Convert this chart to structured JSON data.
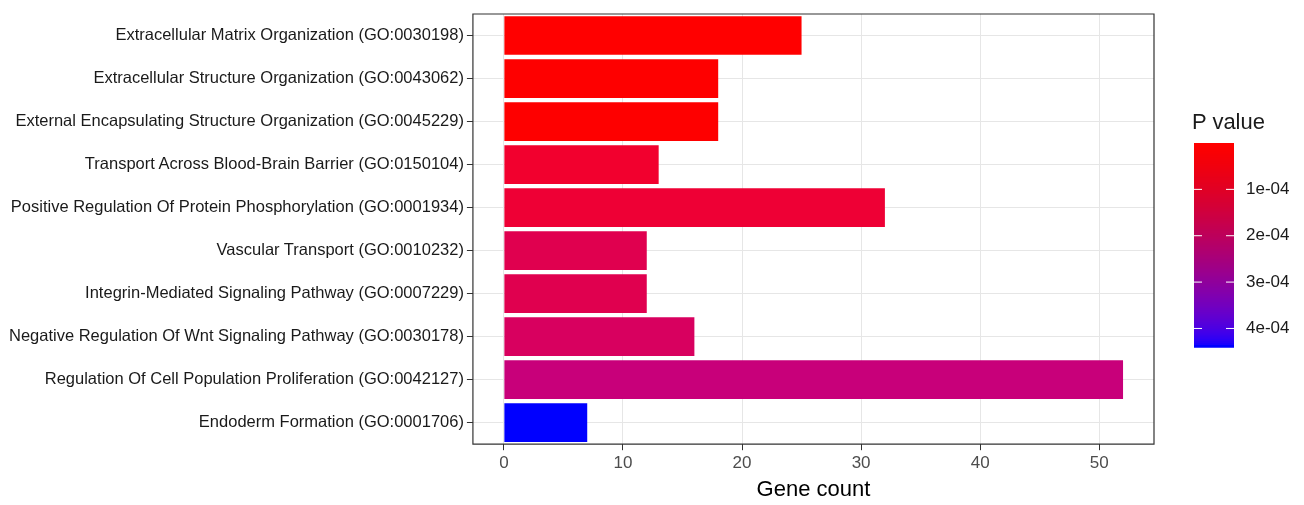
{
  "chart_data": {
    "type": "bar",
    "orientation": "horizontal",
    "xlabel": "Gene count",
    "clabel": "P value",
    "categories": [
      "Extracellular Matrix Organization (GO:0030198)",
      "Extracellular Structure Organization (GO:0043062)",
      "External Encapsulating Structure Organization (GO:0045229)",
      "Transport Across Blood-Brain Barrier (GO:0150104)",
      "Positive Regulation Of Protein Phosphorylation (GO:0001934)",
      "Vascular Transport (GO:0010232)",
      "Integrin-Mediated Signaling Pathway (GO:0007229)",
      "Negative Regulation Of Wnt Signaling Pathway (GO:0030178)",
      "Regulation Of Cell Population Proliferation (GO:0042127)",
      "Endoderm Formation (GO:0001706)"
    ],
    "values": [
      25,
      18,
      18,
      13,
      32,
      12,
      12,
      16,
      52,
      7
    ],
    "colors": [
      "#ff0000",
      "#fe0000",
      "#fe0000",
      "#f2002e",
      "#ee0035",
      "#e0004f",
      "#e0004f",
      "#d8005f",
      "#c8007a",
      "#0000ff"
    ],
    "xlim": [
      -2.6,
      54.6
    ],
    "xticks": [
      0,
      10,
      20,
      30,
      40,
      50
    ],
    "clim": [
      0,
      0.00044
    ],
    "cticks": [
      {
        "value": 0.0001,
        "label": "1e-04"
      },
      {
        "value": 0.0002,
        "label": "2e-04"
      },
      {
        "value": 0.0003,
        "label": "3e-04"
      },
      {
        "value": 0.0004,
        "label": "4e-04"
      }
    ],
    "grid": true
  }
}
